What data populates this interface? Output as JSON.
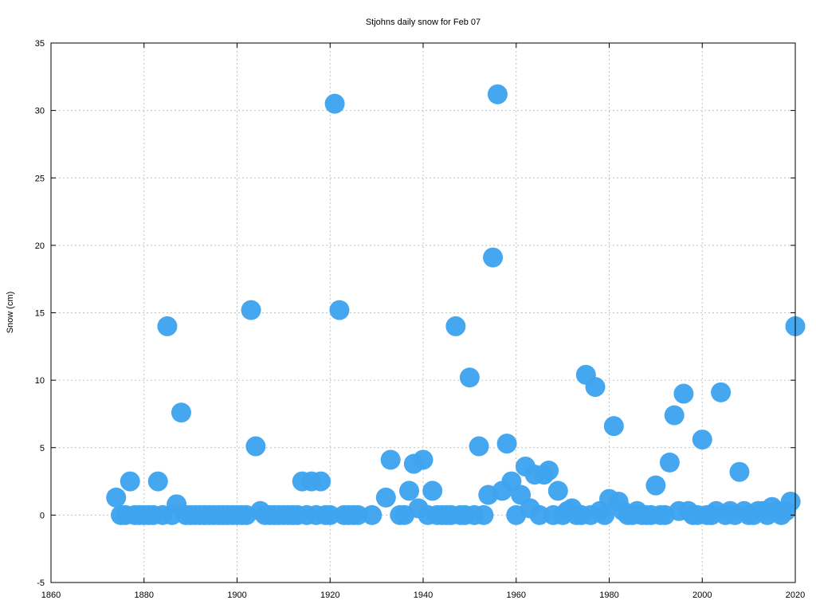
{
  "chart_data": {
    "type": "scatter",
    "title": "Stjohns daily snow for Feb 07",
    "xlabel": "",
    "ylabel": "Snow (cm)",
    "xlim": [
      1860,
      2020
    ],
    "ylim": [
      -5,
      35
    ],
    "xticks": [
      "1860",
      "1880",
      "1900",
      "1920",
      "1940",
      "1960",
      "1980",
      "2000",
      "2020"
    ],
    "yticks": [
      "-5",
      "0",
      "5",
      "10",
      "15",
      "20",
      "25",
      "30",
      "35"
    ],
    "grid": true,
    "marker_color": "#3fa4ef",
    "series": [
      {
        "x": [
          1874,
          1875,
          1876,
          1877,
          1878,
          1879,
          1880,
          1881,
          1882,
          1883,
          1884,
          1885,
          1886,
          1887,
          1888,
          1889,
          1890,
          1891,
          1892,
          1893,
          1894,
          1895,
          1896,
          1897,
          1898,
          1899,
          1900,
          1901,
          1902,
          1903,
          1904,
          1905,
          1906,
          1907,
          1908,
          1909,
          1910,
          1911,
          1912,
          1913,
          1914,
          1915,
          1916,
          1917,
          1918,
          1919,
          1920,
          1921,
          1922,
          1923,
          1924,
          1925,
          1926,
          1929,
          1932,
          1933,
          1935,
          1936,
          1937,
          1938,
          1939,
          1940,
          1941,
          1942,
          1943,
          1944,
          1945,
          1946,
          1947,
          1948,
          1949,
          1950,
          1951,
          1952,
          1953,
          1954,
          1956,
          1955,
          1957,
          1958,
          1959,
          1960,
          1961,
          1962,
          1963,
          1964,
          1965,
          1966,
          1967,
          1968,
          1969,
          1970,
          1971,
          1972,
          1973,
          1974,
          1975,
          1976,
          1977,
          1978,
          1979,
          1980,
          1981,
          1982,
          1983,
          1984,
          1985,
          1986,
          1987,
          1988,
          1989,
          1990,
          1991,
          1992,
          1993,
          1994,
          1995,
          1996,
          1997,
          1998,
          1999,
          2000,
          2001,
          2002,
          2003,
          2004,
          2005,
          2006,
          2007,
          2008,
          2009,
          2010,
          2011,
          2012,
          2013,
          2014,
          2015,
          2016,
          2017,
          2018,
          2019,
          2020
        ],
        "y": [
          1.3,
          0,
          0,
          2.5,
          0,
          0,
          0,
          0,
          0,
          2.5,
          0,
          14,
          0,
          0.8,
          7.6,
          0,
          0,
          0,
          0,
          0,
          0,
          0,
          0,
          0,
          0,
          0,
          0,
          0,
          0,
          15.2,
          5.1,
          0.3,
          0,
          0,
          0,
          0,
          0,
          0,
          0,
          0,
          2.5,
          0,
          2.5,
          0,
          2.5,
          0,
          0,
          30.5,
          15.2,
          0,
          0,
          0,
          0,
          0,
          1.3,
          4.1,
          0,
          0,
          1.8,
          3.8,
          0.5,
          4.1,
          0,
          1.8,
          0,
          0,
          0,
          0,
          14,
          0,
          0,
          10.2,
          0,
          5.1,
          0,
          1.5,
          31.2,
          19.1,
          1.8,
          5.3,
          2.5,
          0,
          1.5,
          3.6,
          0.5,
          3,
          0,
          3,
          3.3,
          0,
          1.8,
          0,
          0.3,
          0.5,
          0,
          0,
          10.4,
          0,
          9.5,
          0.3,
          0,
          1.2,
          6.6,
          1,
          0.3,
          0,
          0,
          0.3,
          0,
          0,
          0,
          2.2,
          0,
          0,
          3.9,
          7.4,
          0.3,
          9,
          0.3,
          0,
          0,
          5.6,
          0,
          0,
          0.3,
          9.1,
          0,
          0.3,
          0,
          3.2,
          0.3,
          0,
          0,
          0.3,
          0.3,
          0,
          0.6,
          0.3,
          0,
          0.3,
          1,
          14
        ]
      }
    ]
  }
}
